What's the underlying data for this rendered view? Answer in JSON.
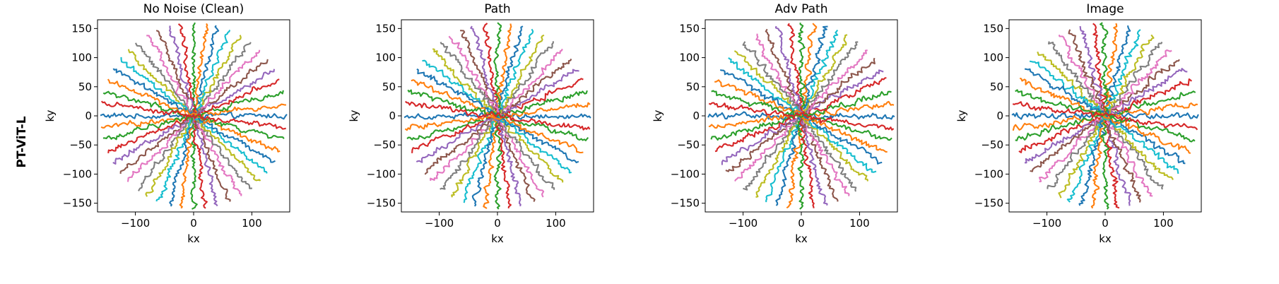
{
  "row_label": "PT-ViT-L",
  "chart_data": [
    {
      "type": "line",
      "title": "No Noise (Clean)",
      "xlabel": "kx",
      "ylabel": "ky",
      "xlim": [
        -165,
        165
      ],
      "ylim": [
        -165,
        165
      ],
      "xticks": [
        -100,
        0,
        100
      ],
      "yticks": [
        -150,
        -100,
        -50,
        0,
        50,
        100,
        150
      ],
      "spokes": 24,
      "spoke_radius": 160,
      "noise": 3.0,
      "grid": false,
      "legend": false
    },
    {
      "type": "line",
      "title": "Path",
      "xlabel": "kx",
      "ylabel": "ky",
      "xlim": [
        -165,
        165
      ],
      "ylim": [
        -165,
        165
      ],
      "xticks": [
        -100,
        0,
        100
      ],
      "yticks": [
        -150,
        -100,
        -50,
        0,
        50,
        100,
        150
      ],
      "spokes": 24,
      "spoke_radius": 160,
      "noise": 3.2,
      "grid": false,
      "legend": false
    },
    {
      "type": "line",
      "title": "Adv Path",
      "xlabel": "kx",
      "ylabel": "ky",
      "xlim": [
        -165,
        165
      ],
      "ylim": [
        -165,
        165
      ],
      "xticks": [
        -100,
        0,
        100
      ],
      "yticks": [
        -150,
        -100,
        -50,
        0,
        50,
        100,
        150
      ],
      "spokes": 24,
      "spoke_radius": 160,
      "noise": 3.4,
      "grid": false,
      "legend": false
    },
    {
      "type": "line",
      "title": "Image",
      "xlabel": "kx",
      "ylabel": "ky",
      "xlim": [
        -165,
        165
      ],
      "ylim": [
        -165,
        165
      ],
      "xticks": [
        -100,
        0,
        100
      ],
      "yticks": [
        -150,
        -100,
        -50,
        0,
        50,
        100,
        150
      ],
      "spokes": 24,
      "spoke_radius": 160,
      "noise": 3.6,
      "grid": false,
      "legend": false
    }
  ],
  "colors": [
    "#1f77b4",
    "#ff7f0e",
    "#2ca02c",
    "#d62728",
    "#9467bd",
    "#8c564b",
    "#e377c2",
    "#7f7f7f",
    "#bcbd22",
    "#17becf"
  ]
}
